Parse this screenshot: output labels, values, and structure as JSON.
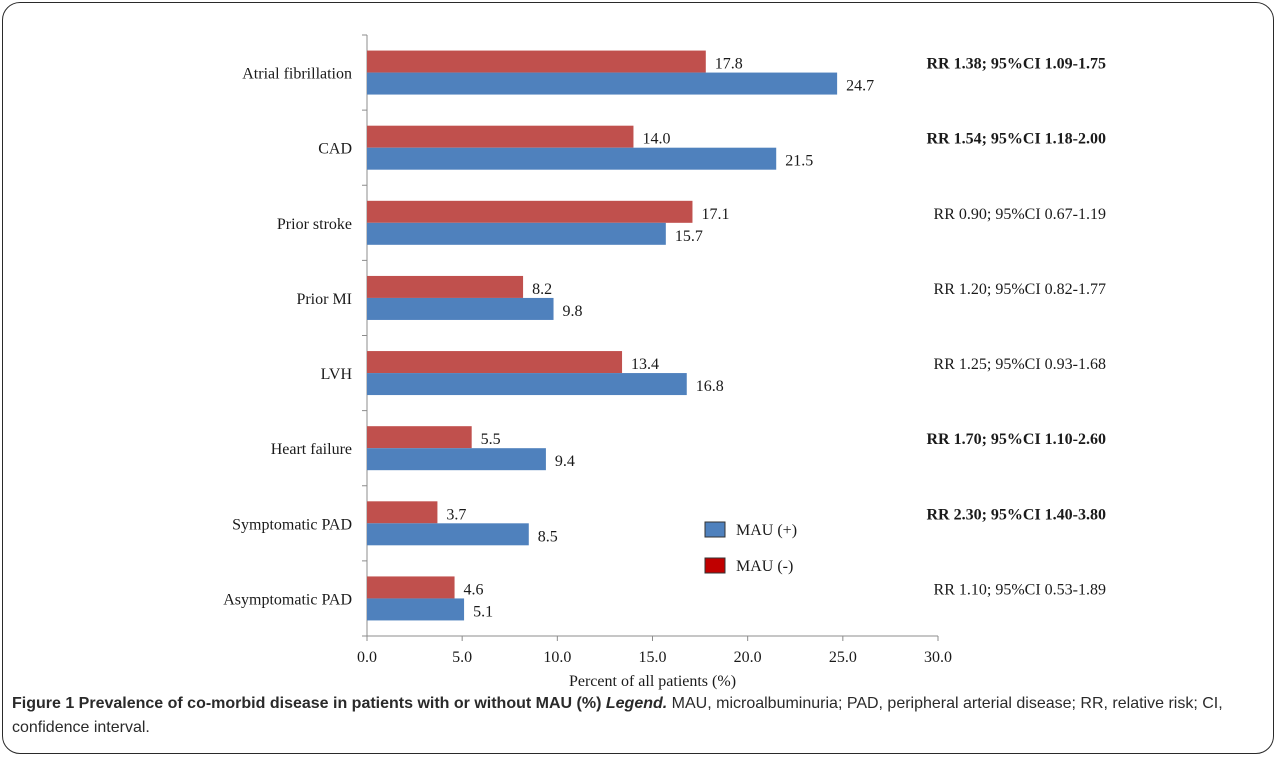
{
  "chart_data": {
    "type": "bar",
    "orientation": "horizontal",
    "categories": [
      "Atrial fibrillation",
      "CAD",
      "Prior stroke",
      "Prior MI",
      "LVH",
      "Heart failure",
      "Symptomatic PAD",
      "Asymptomatic PAD"
    ],
    "series": [
      {
        "name": "MAU (-)",
        "color": "#c0504d",
        "values": [
          17.8,
          14.0,
          17.1,
          8.2,
          13.4,
          5.5,
          3.7,
          4.6
        ],
        "value_labels": [
          "17.8",
          "14.0",
          "17.1",
          "8.2",
          "13.4",
          "5.5",
          "3.7",
          "4.6"
        ]
      },
      {
        "name": "MAU (+)",
        "color": "#4f81bd",
        "values": [
          24.7,
          21.5,
          15.7,
          9.8,
          16.8,
          9.4,
          8.5,
          5.1
        ],
        "value_labels": [
          "24.7",
          "21.5",
          "15.7",
          "9.8",
          "16.8",
          "9.4",
          "8.5",
          "5.1"
        ]
      }
    ],
    "annotations": [
      {
        "text": "RR 1.38; 95%CI 1.09-1.75",
        "bold": true
      },
      {
        "text": "RR 1.54; 95%CI 1.18-2.00",
        "bold": true
      },
      {
        "text": "RR 0.90; 95%CI 0.67-1.19",
        "bold": false
      },
      {
        "text": "RR 1.20; 95%CI 0.82-1.77",
        "bold": false
      },
      {
        "text": "RR 1.25; 95%CI 0.93-1.68",
        "bold": false
      },
      {
        "text": "RR 1.70; 95%CI 1.10-2.60",
        "bold": true
      },
      {
        "text": "RR 2.30; 95%CI 1.40-3.80",
        "bold": true
      },
      {
        "text": "RR 1.10; 95%CI 0.53-1.89",
        "bold": false
      }
    ],
    "xticks": [
      "0.0",
      "5.0",
      "10.0",
      "15.0",
      "20.0",
      "25.0",
      "30.0"
    ],
    "xlim": [
      0,
      30
    ],
    "xlabel": "Percent of all patients (%)",
    "ylabel": "",
    "title": "",
    "grid": false,
    "legend": {
      "placement": "center-right",
      "entries": [
        {
          "name": "MAU (+)",
          "color": "#4f81bd"
        },
        {
          "name": "MAU (-)",
          "color": "#c00000"
        }
      ]
    }
  },
  "caption": {
    "title": "Figure 1 Prevalence of co-morbid disease in patients with or without MAU (%)",
    "legend_word": "Legend.",
    "text": "MAU, microalbuminuria; PAD, peripheral arterial disease; RR, relative risk; CI, confidence interval."
  }
}
